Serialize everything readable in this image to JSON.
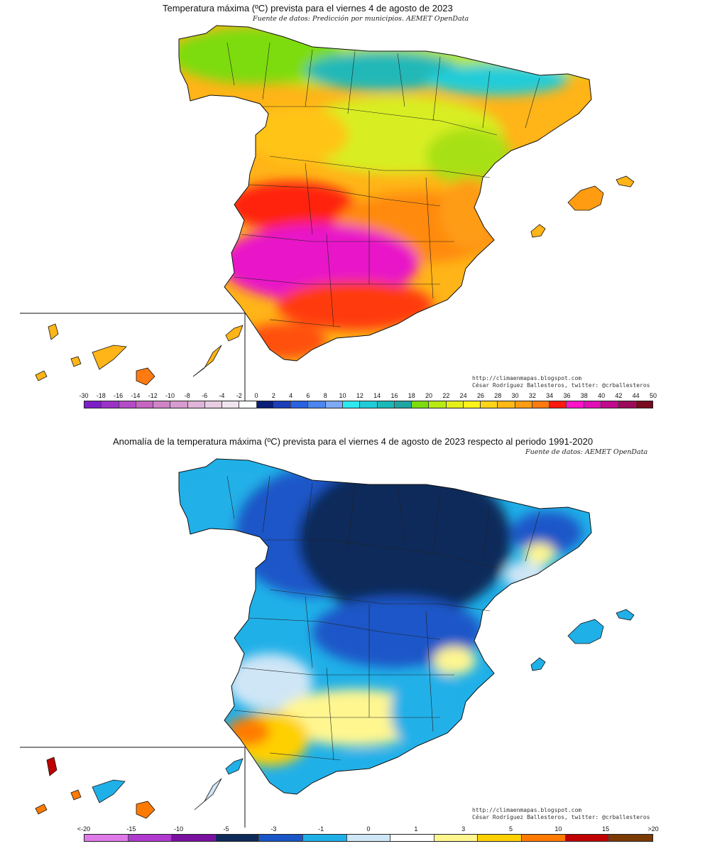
{
  "top_map": {
    "title": "Temperatura máxima (ºC) prevista para el viernes 4 de agosto de 2023",
    "source": "Fuente de datos: Predicción por municipios. AEMET OpenData",
    "credit_url": "http://climaenmapas.blogspot.com",
    "credit_author": "César Rodríguez Ballesteros, twitter: @crballesteros",
    "colorbar": {
      "ticks": [
        "-30",
        "-18",
        "-16",
        "-14",
        "-12",
        "-10",
        "-8",
        "-6",
        "-4",
        "-2",
        "0",
        "2",
        "4",
        "6",
        "8",
        "10",
        "12",
        "14",
        "16",
        "18",
        "20",
        "22",
        "24",
        "26",
        "28",
        "30",
        "32",
        "34",
        "36",
        "38",
        "40",
        "42",
        "44",
        "50"
      ],
      "colors": [
        "#7d1fc8",
        "#9a32c8",
        "#b44cc8",
        "#c666c0",
        "#cf84c8",
        "#d79ccf",
        "#dfb4d8",
        "#e8cde2",
        "#f0e4ee",
        "#ffffff",
        "#0a1e78",
        "#1a3fb8",
        "#2a62e0",
        "#4c86ee",
        "#7ea9f4",
        "#2ee8f0",
        "#20ccd8",
        "#1cb8b8",
        "#20a4a4",
        "#7ddc10",
        "#b8ea14",
        "#e6f018",
        "#fff21c",
        "#ffd418",
        "#ffb814",
        "#ff9c12",
        "#ff7a10",
        "#ff1a10",
        "#ff14c8",
        "#e010b4",
        "#c00c8c",
        "#9c0a5c",
        "#7a0a1e"
      ]
    }
  },
  "bottom_map": {
    "title": "Anomalía de la temperatura máxima (ºC) prevista para el viernes 4 de agosto de 2023 respecto al periodo 1991-2020",
    "source": "Fuente de datos: AEMET OpenData",
    "credit_url": "http://climaenmapas.blogspot.com",
    "credit_author": "César Rodríguez Ballesteros, twitter: @crballesteros",
    "colorbar": {
      "ticks": [
        "<-20",
        "-15",
        "-10",
        "-5",
        "-3",
        "-1",
        "0",
        "1",
        "3",
        "5",
        "10",
        "15",
        ">20"
      ],
      "colors": [
        "#e07ae8",
        "#b03ad0",
        "#7a10a0",
        "#0e2a5a",
        "#1a56c8",
        "#20b0e8",
        "#cfe6f6",
        "#ffffff",
        "#fff690",
        "#ffd000",
        "#ff7a00",
        "#c00000",
        "#7a3a00"
      ]
    }
  }
}
